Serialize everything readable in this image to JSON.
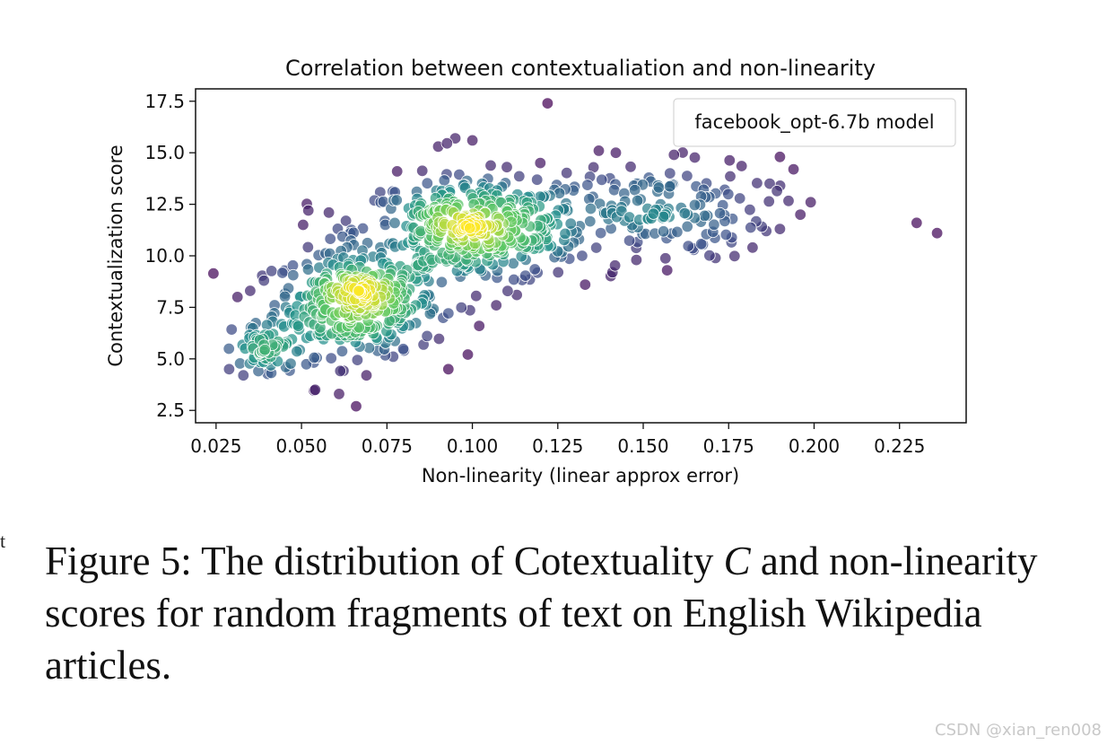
{
  "chart_data": {
    "type": "scatter",
    "title": "Correlation between contextualiation and non-linearity",
    "xlabel": "Non-linearity (linear approx error)",
    "ylabel": "Contextualization score",
    "xlim": [
      0.019,
      0.2445
    ],
    "ylim": [
      1.9,
      18.1
    ],
    "x_ticks": [
      0.025,
      0.05,
      0.075,
      0.1,
      0.125,
      0.15,
      0.175,
      0.2,
      0.225
    ],
    "x_tick_labels": [
      "0.025",
      "0.050",
      "0.075",
      "0.100",
      "0.125",
      "0.150",
      "0.175",
      "0.200",
      "0.225"
    ],
    "y_ticks": [
      2.5,
      5.0,
      7.5,
      10.0,
      12.5,
      15.0,
      17.5
    ],
    "y_tick_labels": [
      "2.5",
      "5.0",
      "7.5",
      "10.0",
      "12.5",
      "15.0",
      "17.5"
    ],
    "legend": {
      "label": "facebook_opt-6.7b model",
      "placement": "upper-right"
    },
    "colormap": [
      "#440154",
      "#3b528b",
      "#21918c",
      "#5ec962",
      "#fde725"
    ],
    "clusters": [
      {
        "center_x": 0.066,
        "center_y": 7.7,
        "sd_x": 0.012,
        "sd_y": 1.25,
        "count": 320
      },
      {
        "center_x": 0.1,
        "center_y": 11.2,
        "sd_x": 0.017,
        "sd_y": 1.3,
        "count": 390
      },
      {
        "center_x": 0.15,
        "center_y": 12.2,
        "sd_x": 0.018,
        "sd_y": 1.2,
        "count": 150
      },
      {
        "center_x": 0.04,
        "center_y": 5.4,
        "sd_x": 0.005,
        "sd_y": 0.7,
        "count": 60
      }
    ],
    "points": [
      {
        "x": 0.122,
        "y": 17.4
      },
      {
        "x": 0.095,
        "y": 15.7
      },
      {
        "x": 0.1,
        "y": 15.6
      },
      {
        "x": 0.09,
        "y": 15.3
      },
      {
        "x": 0.137,
        "y": 15.1
      },
      {
        "x": 0.142,
        "y": 15.0
      },
      {
        "x": 0.159,
        "y": 14.9
      },
      {
        "x": 0.19,
        "y": 14.8
      },
      {
        "x": 0.194,
        "y": 14.2
      },
      {
        "x": 0.078,
        "y": 14.1
      },
      {
        "x": 0.187,
        "y": 13.5
      },
      {
        "x": 0.199,
        "y": 12.6
      },
      {
        "x": 0.196,
        "y": 12.0
      },
      {
        "x": 0.19,
        "y": 11.3
      },
      {
        "x": 0.186,
        "y": 11.2
      },
      {
        "x": 0.182,
        "y": 10.4
      },
      {
        "x": 0.23,
        "y": 11.6
      },
      {
        "x": 0.236,
        "y": 11.1
      },
      {
        "x": 0.148,
        "y": 9.8
      },
      {
        "x": 0.157,
        "y": 9.3
      },
      {
        "x": 0.141,
        "y": 9.2
      },
      {
        "x": 0.133,
        "y": 8.6
      },
      {
        "x": 0.113,
        "y": 8.1
      },
      {
        "x": 0.107,
        "y": 7.6
      },
      {
        "x": 0.102,
        "y": 6.6
      },
      {
        "x": 0.035,
        "y": 8.3
      },
      {
        "x": 0.039,
        "y": 8.8
      },
      {
        "x": 0.066,
        "y": 2.7
      },
      {
        "x": 0.061,
        "y": 3.3
      },
      {
        "x": 0.069,
        "y": 4.2
      },
      {
        "x": 0.054,
        "y": 3.5
      },
      {
        "x": 0.033,
        "y": 4.2
      },
      {
        "x": 0.08,
        "y": 5.4
      },
      {
        "x": 0.052,
        "y": 12.2
      },
      {
        "x": 0.058,
        "y": 12.1
      },
      {
        "x": 0.063,
        "y": 11.7
      }
    ]
  },
  "caption": {
    "prefix": "Figure 5: The distribution of Cotextuality ",
    "variable": "C",
    "suffix": " and non-linearity scores for random fragments of text on English Wikipedia articles."
  },
  "margin_glyph": "t",
  "watermark": "CSDN @xian_ren008"
}
